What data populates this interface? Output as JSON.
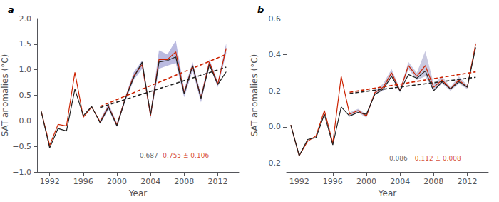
{
  "chart_data": [
    {
      "type": "line",
      "title": "a",
      "xlabel": "Year",
      "ylabel": "SAT anomalies (°C)",
      "x": [
        1991,
        1992,
        1993,
        1994,
        1995,
        1996,
        1997,
        1998,
        1999,
        2000,
        2001,
        2002,
        2003,
        2004,
        2005,
        2006,
        2007,
        2008,
        2009,
        2010,
        2011,
        2012,
        2013
      ],
      "series": [
        {
          "color": "#cc2200",
          "values": [
            0.18,
            -0.48,
            -0.07,
            -0.1,
            0.95,
            0.07,
            0.27,
            -0.02,
            0.28,
            -0.08,
            0.44,
            0.88,
            1.1,
            0.1,
            1.2,
            1.2,
            1.35,
            0.55,
            1.08,
            0.45,
            1.15,
            0.72,
            1.42
          ]
        },
        {
          "color": "#222222",
          "values": [
            0.18,
            -0.53,
            -0.15,
            -0.2,
            0.62,
            0.1,
            0.28,
            -0.04,
            0.27,
            -0.1,
            0.43,
            0.85,
            1.15,
            0.12,
            1.15,
            1.18,
            1.25,
            0.53,
            1.08,
            0.44,
            1.1,
            0.71,
            0.96
          ]
        },
        {
          "color": "#222222",
          "line_style": "dashed",
          "x": [
            1998,
            2013
          ],
          "values": [
            0.26,
            1.05
          ]
        },
        {
          "color": "#cc2200",
          "line_style": "dashed",
          "x": [
            1998,
            2013
          ],
          "values": [
            0.28,
            1.3
          ]
        }
      ],
      "shade": {
        "color": "#6666bb",
        "x": [
          1998,
          1999,
          2000,
          2001,
          2002,
          2003,
          2004,
          2005,
          2006,
          2007,
          2008,
          2009,
          2010,
          2011,
          2012,
          2013
        ],
        "lower": [
          -0.06,
          0.22,
          -0.12,
          0.38,
          0.8,
          1.02,
          0.04,
          1.02,
          1.08,
          1.13,
          0.46,
          0.98,
          0.36,
          1.08,
          0.66,
          1.32
        ],
        "upper": [
          0.02,
          0.34,
          -0.04,
          0.48,
          0.95,
          1.18,
          0.16,
          1.38,
          1.3,
          1.57,
          0.62,
          1.15,
          0.52,
          1.2,
          0.77,
          1.52
        ]
      },
      "annotations": [
        {
          "text": "0.687",
          "x": 2003.8,
          "y": -0.685,
          "color": "#444444"
        },
        {
          "text": "0.755 ± 0.106",
          "x": 2008.2,
          "y": -0.685,
          "color": "#cc2200"
        }
      ],
      "xlim": [
        1990.5,
        2014.5
      ],
      "xticks": [
        1992,
        1996,
        2000,
        2004,
        2008,
        2012
      ],
      "ylim": [
        -1.0,
        2.0
      ],
      "yticks": [
        {
          "value": -1.0,
          "label": "−1.0"
        },
        {
          "value": -0.5,
          "label": "−0.5"
        },
        {
          "value": 0.0,
          "label": "0.0"
        },
        0.5,
        {
          "value": 1.0,
          "label": "1.0"
        },
        1.5,
        {
          "value": 2.0,
          "label": "2.0"
        }
      ],
      "grid": false
    },
    {
      "type": "line",
      "title": "b",
      "xlabel": "Year",
      "ylabel": "SAT anomalies (°C)",
      "x": [
        1991,
        1992,
        1993,
        1994,
        1995,
        1996,
        1997,
        1998,
        1999,
        2000,
        2001,
        2002,
        2003,
        2004,
        2005,
        2006,
        2007,
        2008,
        2009,
        2010,
        2011,
        2012,
        2013
      ],
      "series": [
        {
          "color": "#cc2200",
          "values": [
            0.01,
            -0.16,
            -0.08,
            -0.05,
            0.09,
            -0.09,
            0.28,
            0.07,
            0.09,
            0.06,
            0.19,
            0.22,
            0.3,
            0.2,
            0.34,
            0.28,
            0.34,
            0.22,
            0.26,
            0.21,
            0.26,
            0.22,
            0.46
          ]
        },
        {
          "color": "#222222",
          "values": [
            0.01,
            -0.16,
            -0.07,
            -0.06,
            0.07,
            -0.1,
            0.11,
            0.06,
            0.08,
            0.07,
            0.18,
            0.21,
            0.28,
            0.2,
            0.29,
            0.27,
            0.31,
            0.2,
            0.25,
            0.21,
            0.25,
            0.22,
            0.44
          ]
        },
        {
          "color": "#222222",
          "line_style": "dashed",
          "x": [
            1998,
            2013
          ],
          "values": [
            0.185,
            0.275
          ]
        },
        {
          "color": "#cc2200",
          "line_style": "dashed",
          "x": [
            1998,
            2013
          ],
          "values": [
            0.192,
            0.305
          ]
        }
      ],
      "shade": {
        "color": "#8888bb",
        "x": [
          1998,
          1999,
          2000,
          2001,
          2002,
          2003,
          2004,
          2005,
          2006,
          2007,
          2008,
          2009,
          2010,
          2011,
          2012,
          2013
        ],
        "lower": [
          0.06,
          0.08,
          0.05,
          0.18,
          0.2,
          0.28,
          0.19,
          0.32,
          0.26,
          0.28,
          0.2,
          0.24,
          0.2,
          0.24,
          0.21,
          0.45
        ],
        "upper": [
          0.08,
          0.1,
          0.07,
          0.2,
          0.24,
          0.32,
          0.21,
          0.36,
          0.3,
          0.42,
          0.24,
          0.28,
          0.22,
          0.28,
          0.23,
          0.47
        ]
      },
      "annotations": [
        {
          "text": "0.086",
          "x": 2003.8,
          "y": -0.1735,
          "color": "#444444"
        },
        {
          "text": "0.112 ± 0.008",
          "x": 2008.5,
          "y": -0.1735,
          "color": "#cc2200"
        }
      ],
      "xlim": [
        1990.5,
        2014.5
      ],
      "xticks": [
        1992,
        1996,
        2000,
        2004,
        2008,
        2012
      ],
      "ylim": [
        -0.25,
        0.6
      ],
      "yticks": [
        {
          "value": -0.2,
          "label": "−0.2"
        },
        {
          "value": 0.0,
          "label": "0.0"
        },
        0.2,
        0.4,
        0.6
      ],
      "grid": false
    }
  ]
}
